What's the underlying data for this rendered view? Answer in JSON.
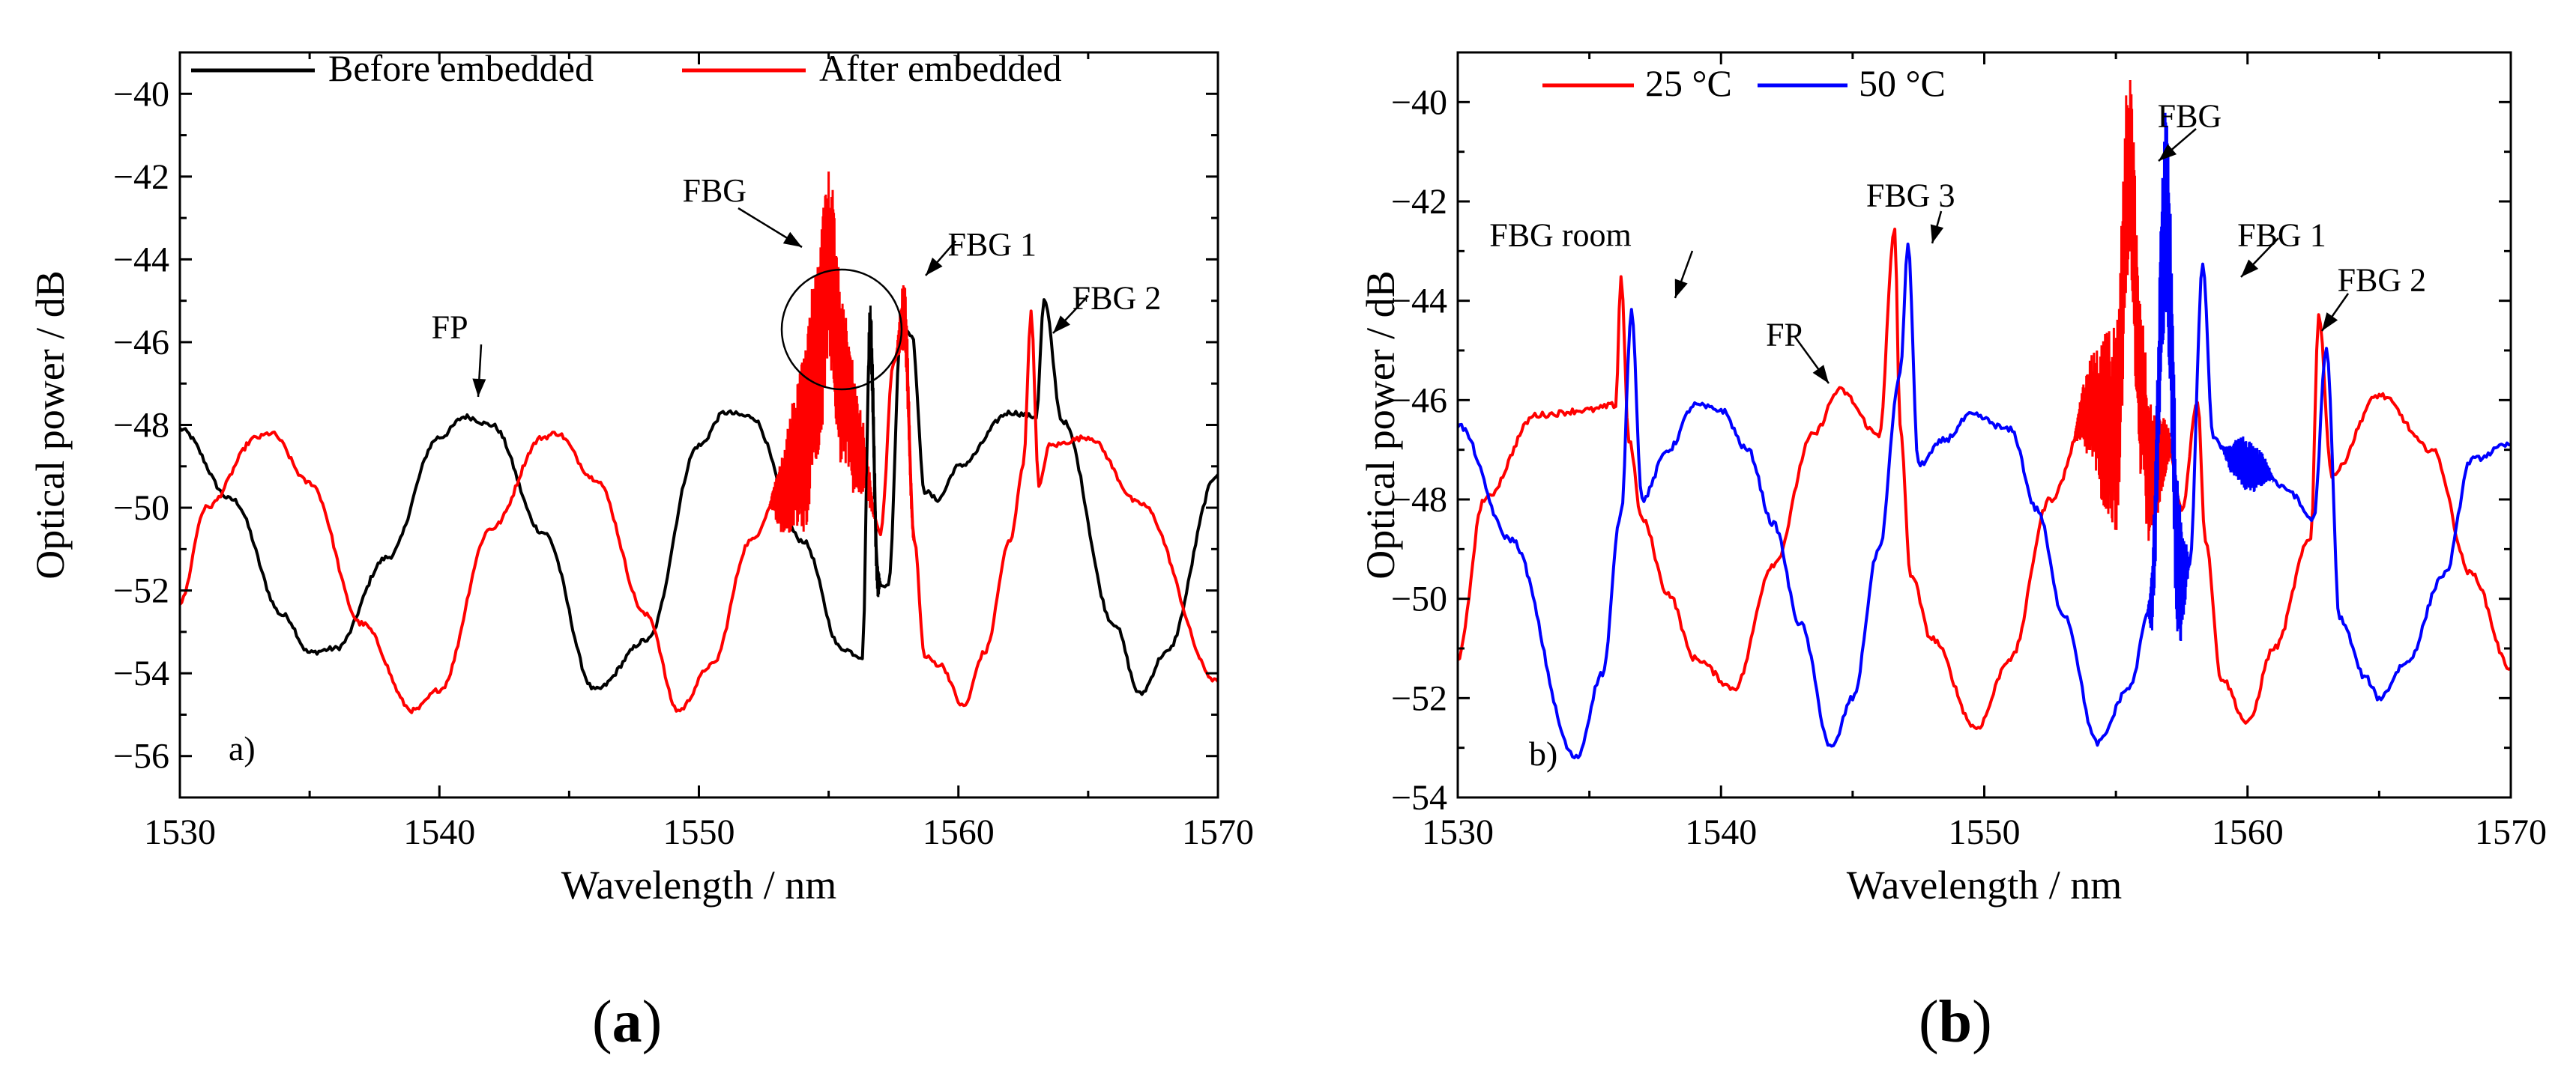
{
  "chart_data": [
    {
      "type": "line",
      "panel_label": "a)",
      "caption_letter": "a",
      "xlabel": "Wavelength / nm",
      "ylabel": "Optical power / dB",
      "xlim": [
        1530,
        1570
      ],
      "ylim": [
        -57,
        -39
      ],
      "xticks": [
        1530,
        1540,
        1550,
        1560,
        1570
      ],
      "yticks": [
        -56,
        -54,
        -52,
        -50,
        -48,
        -46,
        -44,
        -42,
        -40
      ],
      "legend_position": "top",
      "series": [
        {
          "name": "Before embedded",
          "color": "#000000",
          "x": [
            1530,
            1532,
            1534,
            1535,
            1536,
            1538,
            1540,
            1541,
            1542,
            1544,
            1546,
            1548,
            1550,
            1551,
            1552,
            1554,
            1555.5,
            1556.3,
            1556.6,
            1556.9,
            1557.3,
            1557.8,
            1558.2,
            1558.7,
            1559.2,
            1560,
            1562,
            1563,
            1563.3,
            1564,
            1566,
            1567,
            1568,
            1570
          ],
          "y": [
            -48.1,
            -49.8,
            -52.6,
            -53.5,
            -53.4,
            -51.2,
            -48.3,
            -47.8,
            -48,
            -50.6,
            -54.4,
            -53.2,
            -48.5,
            -47.7,
            -47.8,
            -50.8,
            -53.4,
            -53.6,
            -45.7,
            -51.8,
            -51.9,
            -45.6,
            -45.8,
            -49.6,
            -49.8,
            -49,
            -47.7,
            -47.8,
            -45,
            -47.9,
            -52.8,
            -54.5,
            -53.5,
            -49.2
          ]
        },
        {
          "name": "After embedded",
          "color": "#ff0000",
          "x": [
            1530,
            1531,
            1533,
            1533.5,
            1535,
            1537,
            1539,
            1540,
            1542,
            1544,
            1544.5,
            1546,
            1548,
            1549.2,
            1550.5,
            1552,
            1553,
            1554,
            1554.6,
            1555,
            1555.5,
            1556.2,
            1557,
            1557.5,
            1557.9,
            1558.3,
            1558.7,
            1559.3,
            1560.2,
            1561,
            1562,
            1562.5,
            1562.8,
            1563.1,
            1563.5,
            1565,
            1567,
            1570
          ],
          "y": [
            -52.3,
            -50,
            -48.3,
            -48.2,
            -49.4,
            -52.8,
            -54.9,
            -54.4,
            -50.5,
            -48.3,
            -48.2,
            -49.3,
            -52.6,
            -54.9,
            -53.8,
            -50.8,
            -49.8,
            -48.5,
            -46.3,
            -44.1,
            -46.8,
            -48.7,
            -50.6,
            -46.5,
            -45.4,
            -50.8,
            -53.6,
            -53.8,
            -54.8,
            -53.5,
            -50.8,
            -49,
            -45.3,
            -49.5,
            -48.5,
            -48.3,
            -49.9,
            -54.2
          ]
        }
      ],
      "annotations": [
        {
          "text": "FP",
          "x": 1540.4,
          "y": -45.9
        },
        {
          "text": "FBG",
          "x": 1550.6,
          "y": -42.6
        },
        {
          "text": "FBG 1",
          "x": 1561.3,
          "y": -43.9
        },
        {
          "text": "FBG 2",
          "x": 1566.1,
          "y": -45.2
        }
      ]
    },
    {
      "type": "line",
      "panel_label": "b)",
      "caption_letter": "b",
      "xlabel": "Wavelength / nm",
      "ylabel": "Optical power / dB",
      "xlim": [
        1530,
        1570
      ],
      "ylim": [
        -54,
        -39
      ],
      "xticks": [
        1530,
        1540,
        1550,
        1560,
        1570
      ],
      "yticks": [
        -54,
        -52,
        -50,
        -48,
        -46,
        -44,
        -42,
        -40
      ],
      "legend_position": "top-left",
      "series": [
        {
          "name": "25 °C",
          "color": "#ff0000",
          "x": [
            1530,
            1531,
            1533,
            1535,
            1536,
            1536.2,
            1536.5,
            1537,
            1538,
            1539,
            1540.5,
            1542,
            1543.5,
            1544.5,
            1546,
            1546.6,
            1546.8,
            1547.2,
            1548,
            1549.7,
            1551,
            1552.5,
            1554,
            1555,
            1555.5,
            1556,
            1556.3,
            1557,
            1557.5,
            1558.1,
            1558.4,
            1559,
            1560,
            1561,
            1562.4,
            1562.7,
            1563.2,
            1565,
            1567,
            1568.5,
            1570
          ],
          "y": [
            -51.2,
            -48,
            -46.3,
            -46.2,
            -46.1,
            -43.5,
            -46.8,
            -48.4,
            -49.9,
            -51.2,
            -51.8,
            -49.3,
            -46.7,
            -45.8,
            -46.7,
            -42.6,
            -46.5,
            -49.5,
            -50.8,
            -52.6,
            -51.2,
            -48,
            -46.2,
            -46.6,
            -41.4,
            -46.2,
            -47.5,
            -46.9,
            -48.2,
            -46,
            -48.8,
            -51.6,
            -52.5,
            -51,
            -48.8,
            -44.3,
            -47.5,
            -45.9,
            -47,
            -49.5,
            -51.4
          ]
        },
        {
          "name": "50 °C",
          "color": "#0000ff",
          "x": [
            1530,
            1532,
            1534.5,
            1535.5,
            1536.2,
            1536.6,
            1537,
            1538,
            1539,
            1540,
            1541,
            1542,
            1543,
            1544.2,
            1545,
            1546,
            1546.8,
            1547.1,
            1547.5,
            1548.5,
            1549.5,
            1551,
            1552,
            1553,
            1554.3,
            1555.5,
            1556.3,
            1556.9,
            1557.4,
            1557.8,
            1558.3,
            1558.7,
            1559.5,
            1560.5,
            1561.5,
            1562.5,
            1563,
            1563.5,
            1564.5,
            1565,
            1566,
            1567.5,
            1568.5,
            1570
          ],
          "y": [
            -46.5,
            -48.8,
            -53.2,
            -51.5,
            -48.3,
            -44.2,
            -48,
            -47,
            -46.1,
            -46.2,
            -47,
            -48.5,
            -50.5,
            -53,
            -52,
            -49,
            -45.5,
            -42.9,
            -47.3,
            -46.8,
            -46.3,
            -46.6,
            -48.2,
            -50.3,
            -52.9,
            -51.8,
            -50.2,
            -42.3,
            -49.5,
            -49.3,
            -43.3,
            -46.8,
            -47.2,
            -47.4,
            -47.8,
            -48.4,
            -45,
            -50.4,
            -51.6,
            -52,
            -51.3,
            -49.5,
            -47.2,
            -46.9
          ]
        }
      ],
      "annotations": [
        {
          "text": "FBG room",
          "x": 1533.9,
          "y": -42.9
        },
        {
          "text": "FBG 3",
          "x": 1547.2,
          "y": -42.1
        },
        {
          "text": "FBG",
          "x": 1557.8,
          "y": -40.5
        },
        {
          "text": "FBG 1",
          "x": 1561.3,
          "y": -42.9
        },
        {
          "text": "FBG 2",
          "x": 1565.1,
          "y": -43.8
        },
        {
          "text": "FP",
          "x": 1542.4,
          "y": -44.9
        }
      ]
    }
  ]
}
